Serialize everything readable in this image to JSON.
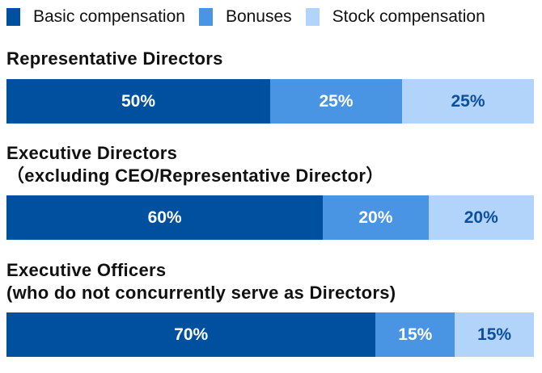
{
  "chart_data": {
    "type": "bar",
    "orientation": "horizontal-stacked-100",
    "legend_position": "top",
    "legend": [
      "Basic compensation",
      "Bonuses",
      "Stock compensation"
    ],
    "colors": [
      "#0050a0",
      "#4a94e4",
      "#b3d4fa"
    ],
    "label_colors": [
      "#ffffff",
      "#ffffff",
      "#0a4fa0"
    ],
    "groups": [
      {
        "title": [
          "Representative Directors"
        ],
        "values": [
          50,
          25,
          25
        ],
        "labels": [
          "50%",
          "25%",
          "25%"
        ]
      },
      {
        "title": [
          "Executive Directors",
          "（excluding CEO/Representative Director）"
        ],
        "values": [
          60,
          20,
          20
        ],
        "labels": [
          "60%",
          "20%",
          "20%"
        ]
      },
      {
        "title": [
          "Executive Officers",
          "(who do not concurrently serve as Directors)"
        ],
        "values": [
          70,
          15,
          15
        ],
        "labels": [
          "70%",
          "15%",
          "15%"
        ]
      }
    ]
  }
}
